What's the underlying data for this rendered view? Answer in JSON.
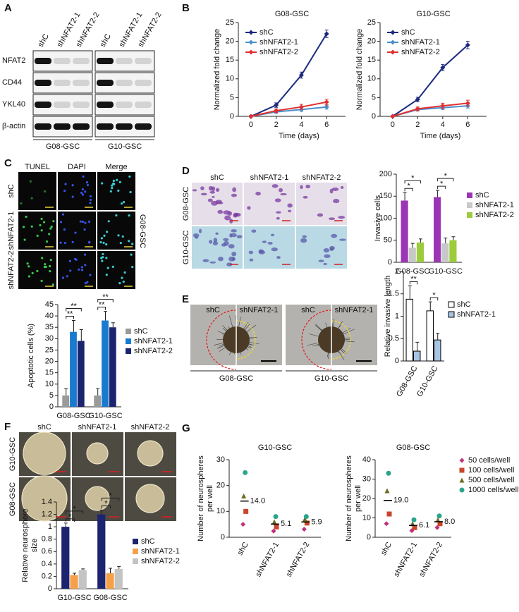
{
  "figure": {
    "letters": [
      "A",
      "B",
      "C",
      "D",
      "E",
      "F",
      "G"
    ],
    "blot": {
      "lanes": [
        "shC",
        "shNFAT2-1",
        "shNFAT2-2"
      ],
      "proteins": [
        "NFAT2",
        "CD44",
        "YKL40",
        "β-actin"
      ],
      "groups": [
        "G08-GSC",
        "G10-GSC"
      ]
    },
    "tunel": {
      "columns": [
        "TUNEL",
        "DAPI",
        "Merge"
      ],
      "rows": [
        "shC",
        "shNFAT2-1",
        "shNFAT2-2"
      ],
      "side": "G08-GSC"
    },
    "invasion": {
      "columns": [
        "shC",
        "shNFAT2-1",
        "shNFAT2-2"
      ],
      "rows": [
        "G08-GSC",
        "G10-GSC"
      ]
    },
    "spheroid": {
      "columns": [
        "shC",
        "shNFAT2-1"
      ],
      "groups": [
        "G08-GSC",
        "G10-GSC"
      ]
    },
    "neurosphere": {
      "columns": [
        "shC",
        "shNFAT2-1",
        "shNFAT2-2"
      ],
      "rows": [
        "G10-GSC",
        "G08-GSC"
      ]
    }
  },
  "chart_data": [
    {
      "type": "line",
      "title": "G08-GSC",
      "xlabel": "Time (days)",
      "ylabel": "Normalized fold change",
      "x": [
        0,
        2,
        4,
        6
      ],
      "xlim": [
        -1,
        7.5
      ],
      "xticks": [
        0,
        2,
        4,
        6
      ],
      "ylim": [
        0,
        25
      ],
      "yticks": [
        0,
        5,
        10,
        15,
        20,
        25
      ],
      "legend": "upper left",
      "series": [
        {
          "name": "shC",
          "color": "#1c2a7e",
          "values": [
            0,
            3,
            11,
            22
          ],
          "errors": [
            0.2,
            0.6,
            0.8,
            1
          ]
        },
        {
          "name": "shNFAT2-1",
          "color": "#4b8fcb",
          "values": [
            0,
            1.2,
            1.8,
            2.5
          ],
          "errors": [
            0.2,
            0.4,
            0.5,
            0.6
          ]
        },
        {
          "name": "shNFAT2-2",
          "color": "#e03030",
          "values": [
            0,
            1.5,
            2.5,
            3.8
          ],
          "errors": [
            0.2,
            0.5,
            0.7,
            0.8
          ]
        }
      ]
    },
    {
      "type": "line",
      "title": "G10-GSC",
      "xlabel": "Time (days)",
      "ylabel": "Normalized fold change",
      "x": [
        0,
        2,
        4,
        6
      ],
      "xlim": [
        -1,
        7.5
      ],
      "xticks": [
        0,
        2,
        4,
        6
      ],
      "ylim": [
        0,
        25
      ],
      "yticks": [
        0,
        5,
        10,
        15,
        20,
        25
      ],
      "legend": "upper left",
      "series": [
        {
          "name": "shC",
          "color": "#1c2a7e",
          "values": [
            0,
            4.5,
            13,
            19
          ],
          "errors": [
            0.2,
            0.6,
            0.8,
            1
          ]
        },
        {
          "name": "shNFAT2-1",
          "color": "#4b8fcb",
          "values": [
            0,
            1.8,
            2.3,
            2.8
          ],
          "errors": [
            0.2,
            0.4,
            0.5,
            0.6
          ]
        },
        {
          "name": "shNFAT2-2",
          "color": "#e03030",
          "values": [
            0,
            2,
            2.8,
            3.5
          ],
          "errors": [
            0.2,
            0.5,
            0.7,
            0.8
          ]
        }
      ]
    },
    {
      "type": "bar",
      "ylabel": "Apoptotic cells (%)",
      "categories": [
        "G08-GSC",
        "G10-GSC"
      ],
      "ylim": [
        0,
        45
      ],
      "yticks": [
        0,
        5,
        10,
        15,
        20,
        25,
        30,
        35,
        40,
        45
      ],
      "legend": "right",
      "series": [
        {
          "name": "shC",
          "color": "#9a9a9a",
          "values": [
            5,
            5
          ],
          "errors": [
            3,
            3
          ]
        },
        {
          "name": "shNFAT2-1",
          "color": "#1a7ad0",
          "values": [
            33,
            38
          ],
          "errors": [
            5,
            4
          ]
        },
        {
          "name": "shNFAT2-2",
          "color": "#1c2470",
          "values": [
            29,
            35
          ],
          "errors": [
            5,
            2
          ]
        }
      ],
      "annotations": [
        [
          "**",
          "**"
        ],
        [
          "**",
          "**"
        ]
      ]
    },
    {
      "type": "bar",
      "ylabel": "Invasive cells",
      "categories": [
        "G08-GSC",
        "G10-GSC"
      ],
      "ylim": [
        0,
        200
      ],
      "yticks": [
        0,
        50,
        100,
        150,
        200
      ],
      "legend": "right",
      "series": [
        {
          "name": "shC",
          "color": "#9b35b5",
          "values": [
            140,
            148
          ],
          "errors": [
            18,
            15
          ]
        },
        {
          "name": "shNFAT2-1",
          "color": "#c8c8c8",
          "values": [
            33,
            43
          ],
          "errors": [
            10,
            12
          ]
        },
        {
          "name": "shNFAT2-2",
          "color": "#9ccc3c",
          "values": [
            45,
            50
          ],
          "errors": [
            8,
            8
          ]
        }
      ],
      "annotations": [
        [
          "*",
          "*"
        ],
        [
          "*",
          "*"
        ]
      ]
    },
    {
      "type": "bar",
      "ylabel": "Relative invasive length",
      "categories": [
        "G08-GSC",
        "G10-GSC"
      ],
      "ylim": [
        0,
        2
      ],
      "yticks": [
        0,
        0.5,
        1,
        1.5,
        2
      ],
      "legend": "right",
      "edgecolor": "#000000",
      "series": [
        {
          "name": "shC",
          "color": "#ffffff",
          "values": [
            1.38,
            1.12
          ],
          "errors": [
            0.3,
            0.2
          ]
        },
        {
          "name": "shNFAT2-1",
          "color": "#a8c4e4",
          "values": [
            0.22,
            0.47
          ],
          "errors": [
            0.2,
            0.15
          ]
        }
      ],
      "annotations": [
        [
          "**"
        ],
        [
          "*"
        ]
      ]
    },
    {
      "type": "bar",
      "ylabel": [
        "Relative neurosphere",
        "size"
      ],
      "categories": [
        "G10-GSC",
        "G08-GSC"
      ],
      "ylim": [
        0,
        1.4
      ],
      "yticks": [
        0,
        0.2,
        0.4,
        0.6,
        0.8,
        1,
        1.2,
        1.4
      ],
      "legend": "right",
      "series": [
        {
          "name": "shC",
          "color": "#1c2470",
          "values": [
            1,
            1.2
          ],
          "errors": [
            0.06,
            0.07
          ]
        },
        {
          "name": "shNFAT2-1",
          "color": "#f5a04a",
          "values": [
            0.22,
            0.25
          ],
          "errors": [
            0.03,
            0.08
          ]
        },
        {
          "name": "shNFAT2-2",
          "color": "#c4c4c4",
          "values": [
            0.3,
            0.32
          ],
          "errors": [
            0.02,
            0.04
          ]
        }
      ],
      "annotations": [
        [
          "*",
          "*"
        ],
        [
          "*",
          "*"
        ]
      ]
    },
    {
      "type": "strip",
      "title": "G10-GSC",
      "ylabel": [
        "Number of neurospheres",
        "per well"
      ],
      "categories": [
        "shC",
        "shNFAT2-1",
        "shNFAT2-2"
      ],
      "ylim": [
        0,
        30
      ],
      "yticks": [
        0,
        10,
        20,
        30
      ],
      "series": [
        {
          "color": "#c2307a",
          "marker": "diamond",
          "values": [
            5,
            2.4,
            3.1
          ]
        },
        {
          "color": "#c8462a",
          "marker": "square",
          "values": [
            10,
            4,
            5.5
          ]
        },
        {
          "color": "#6b6b1e",
          "marker": "triangle",
          "values": [
            16,
            6,
            7
          ]
        },
        {
          "color": "#2aa58c",
          "marker": "circle",
          "values": [
            25,
            8,
            8
          ]
        }
      ],
      "means": [
        14,
        5.1,
        5.9
      ],
      "mean_labels": [
        "14.0",
        "5.1",
        "5.9"
      ]
    },
    {
      "type": "strip",
      "title": "G08-GSC",
      "ylabel": [
        "Number of neurospheres",
        "per well"
      ],
      "categories": [
        "shC",
        "shNFAT2-1",
        "shNFAT2-2"
      ],
      "ylim": [
        0,
        40
      ],
      "yticks": [
        0,
        10,
        20,
        30,
        40
      ],
      "legend": "right",
      "series": [
        {
          "name": "50 cells/well",
          "color": "#c2307a",
          "marker": "diamond",
          "values": [
            7,
            3.4,
            5
          ]
        },
        {
          "name": "100 cells/well",
          "color": "#c8462a",
          "marker": "square",
          "values": [
            12,
            5,
            7
          ]
        },
        {
          "name": "500 cells/well",
          "color": "#6b6b1e",
          "marker": "triangle",
          "values": [
            24,
            7,
            9
          ]
        },
        {
          "name": "1000 cells/well",
          "color": "#2aa58c",
          "marker": "circle",
          "values": [
            33,
            9,
            11
          ]
        }
      ],
      "means": [
        19,
        6.1,
        8
      ],
      "mean_labels": [
        "19.0",
        "6.1",
        "8.0"
      ]
    }
  ]
}
